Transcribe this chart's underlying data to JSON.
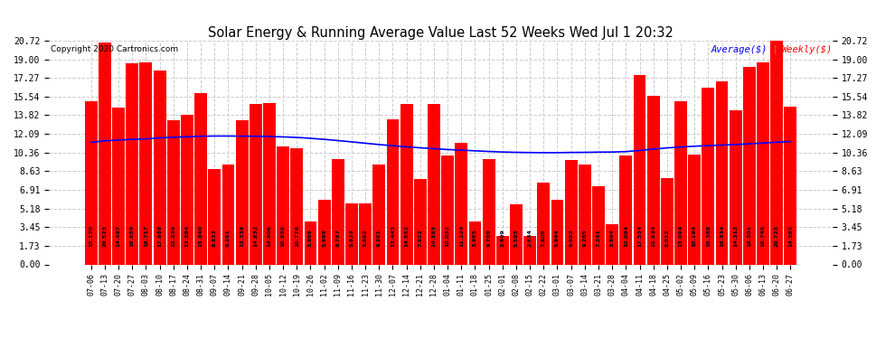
{
  "title": "Solar Energy & Running Average Value Last 52 Weeks Wed Jul 1 20:32",
  "copyright": "Copyright 2020 Cartronics.com",
  "bar_color": "#ff0000",
  "avg_line_color": "#0000ff",
  "background_color": "#ffffff",
  "plot_bg_color": "#ffffff",
  "grid_color": "#cccccc",
  "yticks": [
    0.0,
    1.73,
    3.45,
    5.18,
    6.91,
    8.63,
    10.36,
    12.09,
    13.82,
    15.54,
    17.27,
    19.0,
    20.72
  ],
  "labels": [
    "07-06",
    "07-13",
    "07-20",
    "07-27",
    "08-03",
    "08-10",
    "08-17",
    "08-24",
    "08-31",
    "09-07",
    "09-14",
    "09-21",
    "09-28",
    "10-05",
    "10-12",
    "10-19",
    "10-26",
    "11-02",
    "11-09",
    "11-16",
    "11-23",
    "11-30",
    "12-07",
    "12-14",
    "12-21",
    "12-28",
    "01-04",
    "01-11",
    "01-18",
    "01-25",
    "02-01",
    "02-08",
    "02-15",
    "02-22",
    "03-01",
    "03-07",
    "03-14",
    "03-21",
    "03-28",
    "04-04",
    "04-11",
    "04-18",
    "04-25",
    "05-02",
    "05-09",
    "05-16",
    "05-23",
    "05-30",
    "06-06",
    "06-13",
    "06-20",
    "06-27"
  ],
  "weekly_values": [
    15.12,
    20.523,
    14.497,
    18.659,
    18.717,
    17.988,
    13.339,
    13.884,
    15.84,
    8.833,
    9.261,
    13.338,
    14.852,
    14.906,
    10.958,
    10.776,
    3.966,
    5.989,
    9.787,
    5.629,
    5.692,
    9.261,
    13.445,
    14.852,
    7.922,
    14.885,
    10.052,
    11.224,
    3.985,
    9.789,
    2.609,
    5.593,
    2.634,
    7.606,
    5.994,
    9.693,
    9.265,
    7.261,
    3.694,
    10.094,
    17.534,
    15.634,
    8.012,
    15.094,
    10.194,
    16.388,
    16.934,
    14.313,
    18.301,
    18.745,
    20.723,
    14.583
  ],
  "avg_values": [
    11.3,
    11.45,
    11.52,
    11.58,
    11.63,
    11.72,
    11.78,
    11.82,
    11.87,
    11.89,
    11.89,
    11.88,
    11.87,
    11.85,
    11.81,
    11.76,
    11.68,
    11.58,
    11.47,
    11.35,
    11.22,
    11.1,
    10.99,
    10.89,
    10.8,
    10.72,
    10.64,
    10.58,
    10.52,
    10.46,
    10.41,
    10.38,
    10.36,
    10.35,
    10.35,
    10.37,
    10.38,
    10.4,
    10.41,
    10.45,
    10.55,
    10.68,
    10.79,
    10.87,
    10.95,
    11.0,
    11.05,
    11.1,
    11.17,
    11.24,
    11.32,
    11.38
  ]
}
